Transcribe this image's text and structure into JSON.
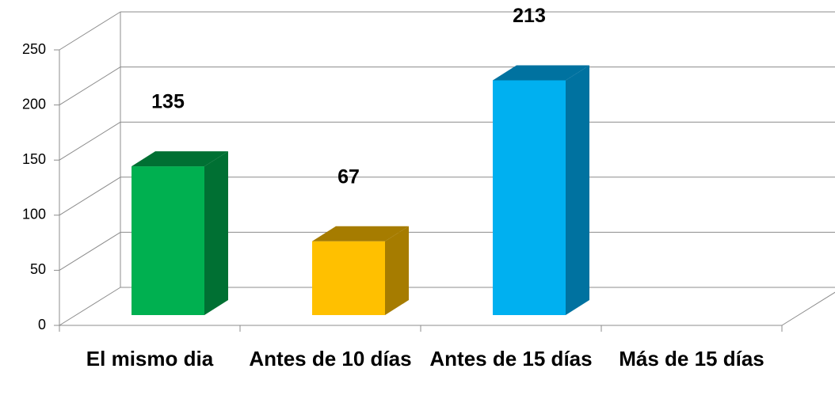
{
  "chart_data": {
    "type": "bar3d",
    "categories": [
      "El mismo dia",
      "Antes de 10 días",
      "Antes de 15 días",
      "Más de 15 días"
    ],
    "values": [
      135,
      67,
      213,
      null
    ],
    "colors": [
      "#00b050",
      "#ffc000",
      "#00b0f0",
      "#7f7f7f"
    ],
    "side_colors": [
      "#007033",
      "#a67c00",
      "#0072a0",
      "#555555"
    ],
    "ylim": [
      0,
      250
    ],
    "yticks": [
      0,
      50,
      100,
      150,
      200,
      250
    ],
    "grid": true
  }
}
